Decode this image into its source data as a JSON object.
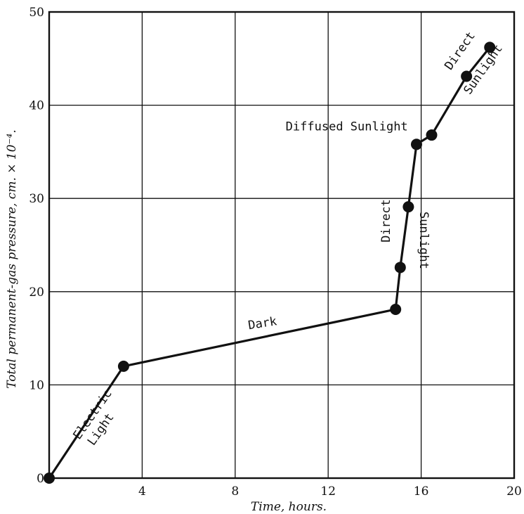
{
  "chart_data": {
    "type": "line",
    "xlabel": "Time, hours.",
    "ylabel": "Total permanent-gas pressure, cm. × 10⁻⁴.",
    "xlim": [
      0,
      20
    ],
    "ylim": [
      0,
      50
    ],
    "x_ticks": [
      4,
      8,
      12,
      16,
      20
    ],
    "x_tick_labels": [
      "4",
      "8",
      "12",
      "16",
      "20"
    ],
    "y_ticks": [
      0,
      10,
      20,
      30,
      40,
      50
    ],
    "y_tick_labels": [
      "0",
      "10",
      "20",
      "30",
      "40",
      "50"
    ],
    "grid": true,
    "series": [
      {
        "x": [
          0.0,
          3.2,
          14.9,
          15.1,
          15.45,
          15.8,
          16.45,
          17.95,
          18.95
        ],
        "y": [
          0.0,
          12.0,
          18.1,
          22.6,
          29.1,
          35.8,
          36.8,
          43.1,
          46.2
        ]
      }
    ],
    "annotations": [
      {
        "text": "Electric",
        "x": 2.0,
        "y": 6.6,
        "angle": -55
      },
      {
        "text": "Light",
        "x": 2.35,
        "y": 5.0,
        "angle": -55
      },
      {
        "text": "Dark",
        "x": 9.2,
        "y": 16.2,
        "angle": -9
      },
      {
        "text": "Diffused Sunlight",
        "x": 12.8,
        "y": 37.3,
        "angle": 0
      },
      {
        "text": "Direct",
        "x": 14.65,
        "y": 27.6,
        "angle": -90
      },
      {
        "text": "Sunlight",
        "x": 15.95,
        "y": 25.5,
        "angle": 90
      },
      {
        "text": "Direct",
        "x": 17.8,
        "y": 45.6,
        "angle": -55
      },
      {
        "text": "Sunlight",
        "x": 18.8,
        "y": 43.6,
        "angle": -55
      }
    ]
  }
}
